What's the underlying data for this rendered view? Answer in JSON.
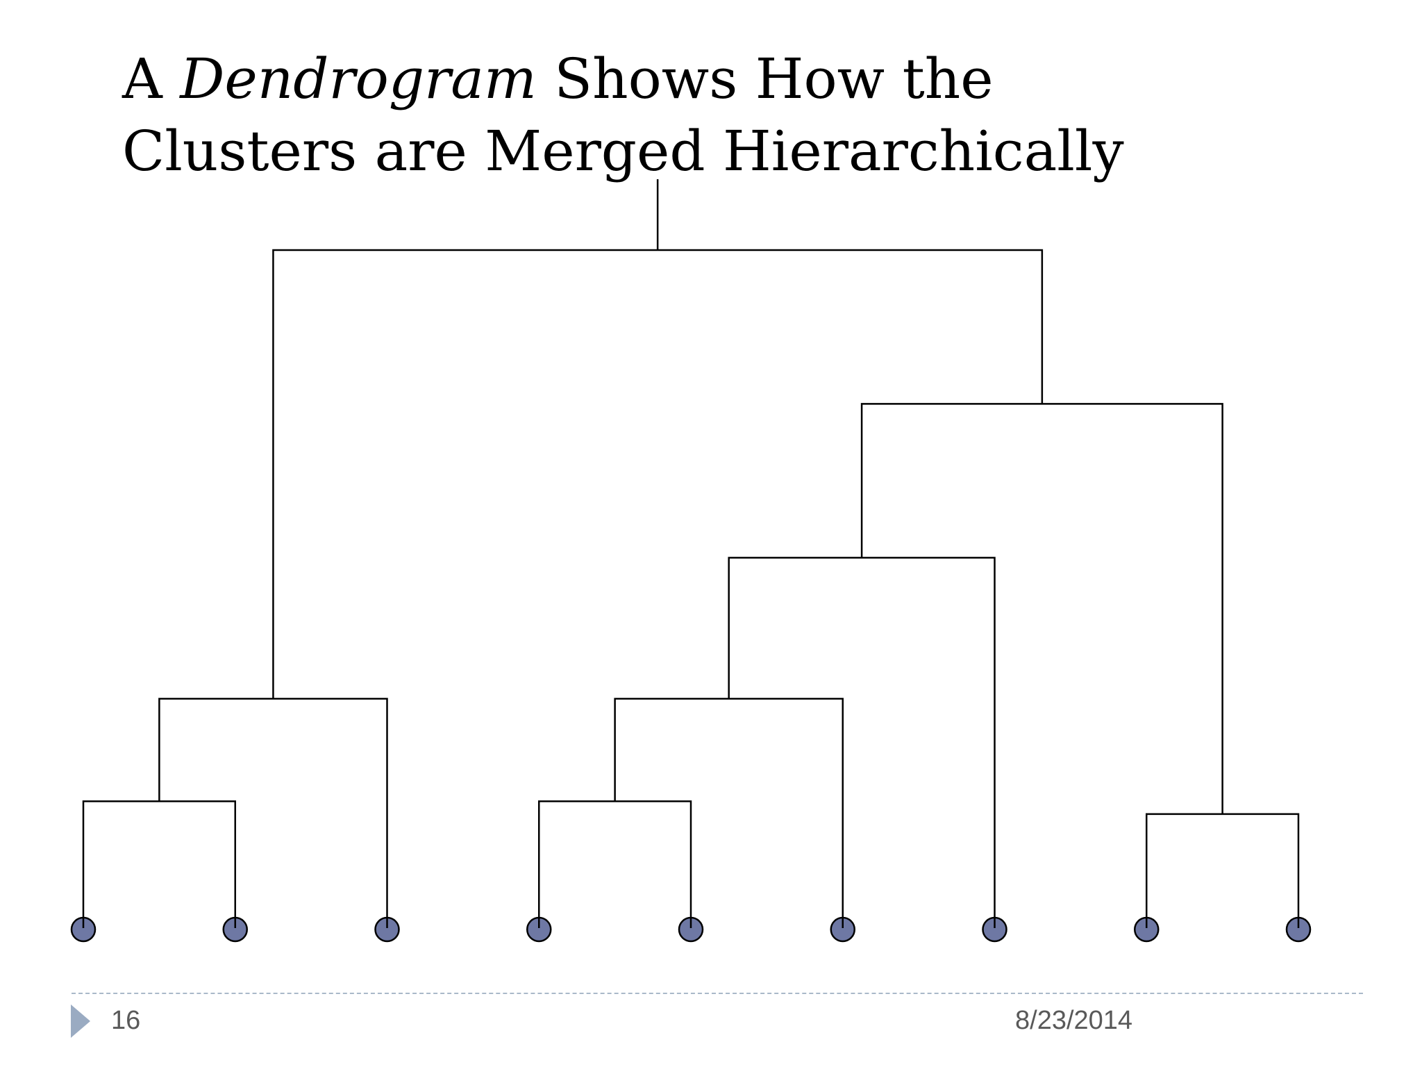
{
  "slide": {
    "title_part1": "A ",
    "title_emphasis": "Dendrogram",
    "title_part2": " Shows How the",
    "title_line2": "Clusters are Merged Hierarchically"
  },
  "dendrogram": {
    "leaf_count": 9,
    "leaf_color": "#6e78a4",
    "line_color": "#000000",
    "merges": [
      {
        "id": "m1",
        "children": [
          "leaf-1",
          "leaf-2"
        ],
        "height": 1.0
      },
      {
        "id": "m2",
        "children": [
          "m1",
          "leaf-3"
        ],
        "height": 1.8
      },
      {
        "id": "m3",
        "children": [
          "leaf-4",
          "leaf-5"
        ],
        "height": 1.0
      },
      {
        "id": "m4",
        "children": [
          "m3",
          "leaf-6"
        ],
        "height": 1.8
      },
      {
        "id": "m5",
        "children": [
          "m4",
          "leaf-7"
        ],
        "height": 2.9
      },
      {
        "id": "m6",
        "children": [
          "leaf-8",
          "leaf-9"
        ],
        "height": 0.9
      },
      {
        "id": "m7",
        "children": [
          "m5",
          "m6"
        ],
        "height": 4.1
      },
      {
        "id": "m8",
        "children": [
          "m2",
          "m7"
        ],
        "height": 5.3
      }
    ]
  },
  "footer": {
    "page_number": "16",
    "date": "8/23/2014"
  }
}
